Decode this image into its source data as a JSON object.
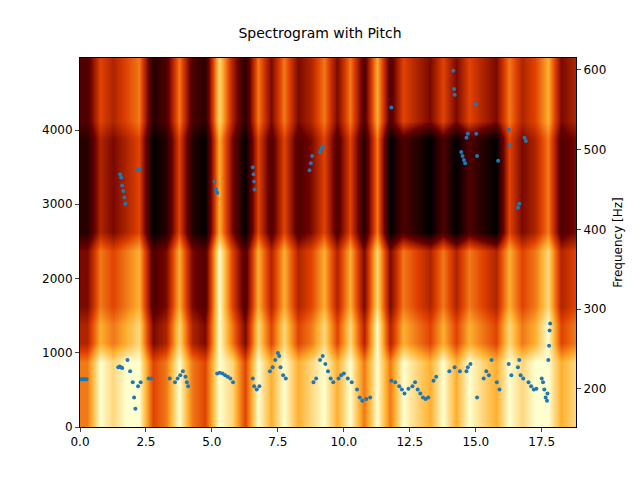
{
  "chart_data": {
    "type": "heatmap",
    "title": "Spectrogram with Pitch",
    "y2_label": "Frequency [Hz]",
    "xlim": [
      0,
      18.8
    ],
    "xticks": [
      {
        "value": 0,
        "label": "0.0"
      },
      2.5,
      {
        "value": 5,
        "label": "5.0"
      },
      7.5,
      {
        "value": 10,
        "label": "10.0"
      },
      12.5,
      {
        "value": 15,
        "label": "15.0"
      },
      17.5
    ],
    "ylim": [
      0,
      4970
    ],
    "yticks": [
      0,
      1000,
      2000,
      3000,
      4000
    ],
    "y2lim": [
      152,
      615
    ],
    "y2ticks": [
      200,
      300,
      400,
      500,
      600
    ],
    "x": [
      0.25,
      0.75,
      1.25,
      1.75,
      2.25,
      2.75,
      3.25,
      3.75,
      4.25,
      4.75,
      5.25,
      5.75,
      6.25,
      6.75,
      7.25,
      7.75,
      8.25,
      8.75,
      9.25,
      9.75,
      10.25,
      10.75,
      11.25,
      11.75,
      12.25,
      12.75,
      13.25,
      13.75,
      14.25,
      14.75,
      15.25,
      15.75,
      16.25,
      16.75,
      17.25,
      17.75,
      18.25,
      18.75
    ],
    "y": [
      125,
      375,
      625,
      875,
      1125,
      1375,
      1625,
      1875,
      2125,
      2375,
      2625,
      2875,
      3125,
      3375,
      3625,
      3875,
      4125,
      4375,
      4625,
      4875
    ],
    "cells": [
      [
        6,
        9,
        8,
        9,
        9,
        5,
        6,
        9,
        6,
        5,
        9,
        8,
        5,
        9,
        7,
        9,
        7,
        8,
        9,
        7,
        9,
        6,
        9,
        6,
        9,
        8,
        7,
        9,
        7,
        9,
        8,
        7,
        9,
        8,
        9,
        9,
        7,
        8
      ],
      [
        6,
        9,
        8,
        9,
        9,
        5,
        6,
        9,
        6,
        5,
        9,
        8,
        5,
        9,
        7,
        9,
        7,
        8,
        9,
        7,
        9,
        6,
        9,
        6,
        9,
        8,
        7,
        9,
        7,
        9,
        8,
        7,
        9,
        8,
        9,
        9,
        7,
        8
      ],
      [
        6,
        9,
        8,
        9,
        9,
        5,
        6,
        9,
        6,
        5,
        9,
        8,
        5,
        9,
        7,
        9,
        7,
        8,
        9,
        7,
        9,
        6,
        9,
        6,
        9,
        8,
        7,
        9,
        7,
        9,
        8,
        7,
        9,
        8,
        9,
        9,
        7,
        8
      ],
      [
        6,
        9,
        8,
        9,
        9,
        5,
        6,
        9,
        6,
        5,
        9,
        8,
        5,
        9,
        7,
        9,
        7,
        8,
        9,
        7,
        9,
        6,
        9,
        6,
        9,
        8,
        7,
        9,
        7,
        9,
        8,
        7,
        9,
        8,
        9,
        9,
        7,
        8
      ],
      [
        4,
        7,
        6,
        7,
        8,
        3,
        4,
        8,
        4,
        3,
        9,
        6,
        3,
        8,
        5,
        8,
        5,
        6,
        8,
        5,
        8,
        4,
        9,
        4,
        7,
        6,
        5,
        7,
        5,
        7,
        6,
        5,
        8,
        6,
        7,
        9,
        5,
        6
      ],
      [
        4,
        7,
        6,
        7,
        8,
        3,
        4,
        8,
        4,
        3,
        9,
        6,
        3,
        8,
        5,
        8,
        5,
        6,
        8,
        5,
        8,
        4,
        9,
        4,
        7,
        6,
        5,
        7,
        5,
        7,
        6,
        5,
        8,
        6,
        7,
        9,
        5,
        6
      ],
      [
        3,
        6,
        5,
        6,
        7,
        2,
        3,
        7,
        3,
        2,
        9,
        5,
        2,
        7,
        4,
        7,
        4,
        5,
        7,
        4,
        7,
        3,
        8,
        3,
        6,
        5,
        4,
        6,
        4,
        6,
        5,
        4,
        7,
        5,
        6,
        8,
        4,
        5
      ],
      [
        3,
        6,
        5,
        6,
        7,
        2,
        3,
        7,
        3,
        2,
        9,
        5,
        2,
        7,
        4,
        7,
        4,
        5,
        7,
        4,
        7,
        3,
        8,
        3,
        6,
        5,
        4,
        6,
        4,
        6,
        5,
        4,
        7,
        5,
        6,
        8,
        4,
        5
      ],
      [
        3,
        6,
        5,
        6,
        7,
        2,
        3,
        7,
        3,
        2,
        9,
        5,
        2,
        7,
        4,
        7,
        4,
        5,
        7,
        4,
        7,
        3,
        8,
        3,
        6,
        5,
        4,
        6,
        4,
        6,
        5,
        4,
        7,
        5,
        6,
        8,
        4,
        5
      ],
      [
        3,
        6,
        5,
        6,
        7,
        2,
        3,
        7,
        3,
        2,
        9,
        5,
        2,
        7,
        4,
        7,
        4,
        5,
        7,
        4,
        7,
        3,
        8,
        3,
        6,
        5,
        4,
        6,
        4,
        6,
        5,
        4,
        7,
        5,
        6,
        8,
        4,
        5
      ],
      [
        1,
        4,
        3,
        4,
        5,
        0,
        1,
        5,
        1,
        0,
        7,
        3,
        0,
        5,
        2,
        5,
        2,
        3,
        5,
        2,
        5,
        1,
        6,
        0,
        2,
        1,
        0,
        2,
        0,
        2,
        1,
        0,
        5,
        3,
        4,
        6,
        2,
        3
      ],
      [
        1,
        4,
        3,
        4,
        5,
        0,
        1,
        5,
        1,
        0,
        7,
        3,
        0,
        5,
        2,
        5,
        2,
        3,
        5,
        2,
        5,
        1,
        6,
        0,
        2,
        1,
        0,
        2,
        0,
        2,
        1,
        0,
        5,
        3,
        4,
        6,
        2,
        3
      ],
      [
        1,
        4,
        3,
        4,
        5,
        0,
        1,
        5,
        1,
        0,
        7,
        3,
        0,
        5,
        2,
        5,
        2,
        3,
        5,
        2,
        5,
        1,
        6,
        0,
        2,
        1,
        0,
        2,
        0,
        2,
        1,
        0,
        5,
        3,
        4,
        6,
        2,
        3
      ],
      [
        1,
        4,
        3,
        4,
        5,
        0,
        1,
        5,
        1,
        0,
        7,
        3,
        0,
        5,
        2,
        5,
        2,
        3,
        5,
        2,
        5,
        1,
        6,
        0,
        2,
        1,
        0,
        2,
        0,
        2,
        1,
        0,
        5,
        3,
        4,
        6,
        2,
        3
      ],
      [
        1,
        4,
        3,
        4,
        5,
        0,
        1,
        5,
        1,
        0,
        7,
        3,
        0,
        5,
        2,
        5,
        2,
        3,
        5,
        2,
        5,
        1,
        6,
        0,
        2,
        1,
        0,
        2,
        0,
        2,
        1,
        0,
        5,
        3,
        4,
        6,
        2,
        3
      ],
      [
        1,
        4,
        3,
        4,
        5,
        0,
        1,
        5,
        1,
        0,
        7,
        3,
        0,
        5,
        2,
        5,
        2,
        3,
        5,
        2,
        5,
        1,
        6,
        0,
        2,
        1,
        0,
        2,
        0,
        2,
        1,
        0,
        5,
        3,
        4,
        6,
        2,
        3
      ],
      [
        2,
        5,
        4,
        5,
        6,
        1,
        2,
        6,
        2,
        1,
        8,
        4,
        1,
        6,
        3,
        6,
        3,
        4,
        6,
        3,
        6,
        2,
        7,
        2,
        5,
        4,
        3,
        5,
        3,
        5,
        4,
        3,
        6,
        4,
        5,
        7,
        3,
        4
      ],
      [
        2,
        5,
        4,
        5,
        6,
        1,
        2,
        6,
        2,
        1,
        8,
        4,
        1,
        6,
        3,
        6,
        3,
        4,
        6,
        3,
        6,
        2,
        7,
        2,
        5,
        4,
        3,
        5,
        3,
        5,
        4,
        3,
        6,
        4,
        5,
        7,
        3,
        4
      ],
      [
        2,
        5,
        4,
        5,
        6,
        1,
        2,
        6,
        2,
        1,
        8,
        4,
        1,
        6,
        3,
        6,
        3,
        4,
        6,
        3,
        6,
        2,
        7,
        2,
        5,
        4,
        3,
        5,
        3,
        5,
        4,
        3,
        6,
        4,
        5,
        7,
        3,
        4
      ],
      [
        2,
        5,
        4,
        5,
        6,
        1,
        2,
        6,
        2,
        1,
        8,
        4,
        1,
        6,
        3,
        6,
        3,
        4,
        6,
        3,
        6,
        2,
        7,
        2,
        5,
        4,
        3,
        5,
        3,
        5,
        4,
        3,
        6,
        4,
        5,
        7,
        3,
        4
      ]
    ],
    "series": [
      {
        "type": "scatter",
        "axis": "y2",
        "color": "#1f77b4",
        "marker": "circle",
        "x": [
          0.05,
          0.1,
          0.15,
          0.2,
          0.25,
          1.45,
          1.5,
          1.55,
          1.6,
          1.52,
          1.56,
          1.6,
          1.64,
          1.68,
          1.72,
          1.8,
          1.9,
          2.0,
          2.05,
          2.1,
          2.2,
          2.3,
          2.2,
          2.25,
          2.6,
          2.7,
          3.4,
          3.6,
          3.7,
          3.8,
          3.9,
          4.0,
          4.05,
          4.1,
          5.1,
          5.15,
          5.2,
          5.2,
          5.3,
          5.4,
          5.5,
          5.6,
          5.7,
          5.8,
          6.55,
          6.58,
          6.6,
          6.62,
          6.55,
          6.6,
          6.7,
          6.8,
          7.2,
          7.3,
          7.4,
          7.5,
          7.55,
          7.6,
          7.7,
          7.8,
          8.7,
          8.75,
          8.8,
          9.1,
          9.15,
          9.2,
          8.85,
          8.95,
          9.1,
          9.2,
          9.3,
          9.4,
          9.5,
          9.6,
          9.8,
          9.9,
          10.0,
          10.15,
          10.3,
          10.5,
          10.6,
          10.7,
          10.85,
          11.0,
          11.8,
          11.8,
          11.95,
          12.1,
          12.2,
          12.3,
          12.45,
          12.6,
          12.7,
          12.8,
          12.9,
          13.0,
          13.1,
          13.2,
          13.4,
          13.5,
          14.0,
          14.2,
          14.4,
          14.15,
          14.18,
          14.2,
          14.45,
          14.5,
          14.55,
          14.6,
          14.65,
          14.7,
          14.65,
          14.7,
          14.8,
          15.0,
          15.02,
          15.05,
          15.05,
          15.3,
          15.4,
          15.5,
          15.6,
          15.85,
          15.8,
          15.9,
          16.25,
          16.3,
          16.25,
          16.35,
          16.6,
          16.65,
          16.6,
          16.65,
          16.7,
          16.8,
          16.85,
          16.9,
          17.0,
          17.1,
          17.2,
          17.3,
          17.5,
          17.55,
          17.6,
          17.65,
          17.7,
          17.72,
          17.75,
          17.78,
          17.8,
          17.82
        ],
        "values": [
          212,
          212,
          212,
          212,
          212,
          227,
          228,
          227,
          226,
          469,
          465,
          455,
          448,
          440,
          432,
          236,
          222,
          208,
          189,
          175,
          203,
          208,
          474,
          476,
          213,
          213,
          213,
          208,
          213,
          217,
          222,
          215,
          208,
          203,
          460,
          450,
          446,
          219,
          220,
          219,
          217,
          215,
          213,
          208,
          478,
          469,
          460,
          450,
          213,
          203,
          199,
          203,
          222,
          227,
          236,
          245,
          241,
          227,
          217,
          213,
          474,
          483,
          492,
          497,
          501,
          504,
          208,
          213,
          236,
          241,
          231,
          222,
          213,
          208,
          213,
          217,
          219,
          213,
          208,
          199,
          189,
          185,
          187,
          189,
          553,
          210,
          208,
          203,
          199,
          194,
          200,
          203,
          208,
          199,
          194,
          189,
          187,
          189,
          210,
          215,
          222,
          227,
          222,
          599,
          576,
          569,
          497,
          492,
          487,
          483,
          515,
          520,
          222,
          227,
          231,
          557,
          520,
          492,
          189,
          213,
          222,
          217,
          236,
          486,
          208,
          199,
          525,
          506,
          231,
          217,
          427,
          432,
          227,
          236,
          217,
          213,
          515,
          511,
          208,
          203,
          199,
          200,
          213,
          208,
          199,
          189,
          185,
          194,
          236,
          254,
          273,
          282
        ]
      }
    ]
  }
}
